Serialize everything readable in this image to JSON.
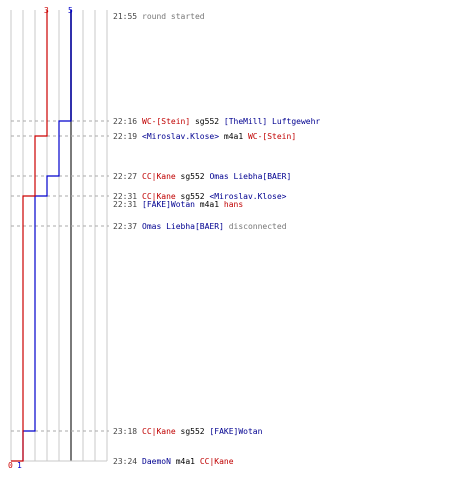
{
  "chart_data": {
    "type": "line",
    "series": [
      {
        "color": "#0000cc",
        "start_label": "5",
        "end_label": "1",
        "steps": [
          {
            "time": "21:55",
            "value": 5
          },
          {
            "time": "22:16",
            "value": 4
          },
          {
            "time": "22:27",
            "value": 3
          },
          {
            "time": "22:31",
            "value": 2
          },
          {
            "time": "23:18",
            "value": 1
          }
        ]
      },
      {
        "color": "#cc0000",
        "start_label": "3",
        "end_label": "0",
        "steps": [
          {
            "time": "21:55",
            "value": 3
          },
          {
            "time": "22:19",
            "value": 2
          },
          {
            "time": "22:31",
            "value": 1
          },
          {
            "time": "23:24",
            "value": 0
          }
        ]
      }
    ],
    "events": [
      {
        "time": "21:55",
        "parts": [
          {
            "text": "round started",
            "color": "grey"
          }
        ]
      },
      {
        "time": "22:16",
        "parts": [
          {
            "text": "WC-[Stein]",
            "color": "red"
          },
          {
            "text": " sg552 ",
            "color": "black"
          },
          {
            "text": "[TheMill] Luftgewehr",
            "color": "blue"
          }
        ]
      },
      {
        "time": "22:19",
        "parts": [
          {
            "text": "<Miroslav.Klose>",
            "color": "blue"
          },
          {
            "text": " m4a1 ",
            "color": "black"
          },
          {
            "text": "WC-[Stein]",
            "color": "red"
          }
        ]
      },
      {
        "time": "22:27",
        "parts": [
          {
            "text": "CC|Kane",
            "color": "red"
          },
          {
            "text": " sg552 ",
            "color": "black"
          },
          {
            "text": "Omas Liebha[BAER]",
            "color": "blue"
          }
        ]
      },
      {
        "time": "22:31",
        "parts": [
          {
            "text": "CC|Kane",
            "color": "red"
          },
          {
            "text": " sg552 ",
            "color": "black"
          },
          {
            "text": "<Miroslav.Klose>",
            "color": "blue"
          }
        ]
      },
      {
        "time": "22:31",
        "parts": [
          {
            "text": "[FAKE]Wotan",
            "color": "blue"
          },
          {
            "text": " m4a1 ",
            "color": "black"
          },
          {
            "text": "hans",
            "color": "red"
          }
        ]
      },
      {
        "time": "22:37",
        "parts": [
          {
            "text": "Omas Liebha[BAER]",
            "color": "blue"
          },
          {
            "text": " disconnected",
            "color": "grey"
          }
        ]
      },
      {
        "time": "23:18",
        "parts": [
          {
            "text": "CC|Kane",
            "color": "red"
          },
          {
            "text": " sg552 ",
            "color": "black"
          },
          {
            "text": "[FAKE]Wotan",
            "color": "blue"
          }
        ]
      },
      {
        "time": "23:24",
        "parts": [
          {
            "text": "DaemoN",
            "color": "blue"
          },
          {
            "text": " m4a1 ",
            "color": "black"
          },
          {
            "text": "CC|Kane",
            "color": "red"
          }
        ]
      }
    ],
    "grid": true,
    "xlim": [
      0,
      8
    ],
    "ylim_time": [
      "21:55",
      "23:24"
    ]
  }
}
